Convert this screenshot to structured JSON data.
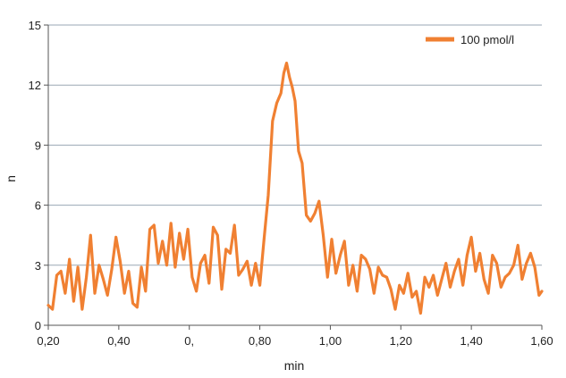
{
  "chart_data": {
    "type": "line",
    "title": "",
    "xlabel": "min",
    "ylabel": "n",
    "xlim": [
      0.2,
      1.6
    ],
    "ylim": [
      0,
      15
    ],
    "grid": true,
    "legend_position": "top-right",
    "x_ticks": [
      {
        "value": 0.2,
        "label": "0,20"
      },
      {
        "value": 0.4,
        "label": "0,40"
      },
      {
        "value": 0.6,
        "label": "0,"
      },
      {
        "value": 0.8,
        "label": "0,80"
      },
      {
        "value": 1.0,
        "label": "1,00"
      },
      {
        "value": 1.2,
        "label": "1,20"
      },
      {
        "value": 1.4,
        "label": "1,40"
      },
      {
        "value": 1.6,
        "label": "1,60"
      }
    ],
    "y_ticks": [
      {
        "value": 0,
        "label": "0"
      },
      {
        "value": 3,
        "label": "3"
      },
      {
        "value": 6,
        "label": "6"
      },
      {
        "value": 9,
        "label": "9"
      },
      {
        "value": 12,
        "label": "12"
      },
      {
        "value": 15,
        "label": "15"
      }
    ],
    "series": [
      {
        "name": "100 pmol/l",
        "color": "#f08032",
        "x": [
          0.2,
          0.212,
          0.224,
          0.236,
          0.248,
          0.26,
          0.272,
          0.284,
          0.296,
          0.308,
          0.32,
          0.332,
          0.344,
          0.356,
          0.368,
          0.38,
          0.392,
          0.404,
          0.416,
          0.428,
          0.44,
          0.452,
          0.464,
          0.476,
          0.488,
          0.5,
          0.512,
          0.524,
          0.536,
          0.548,
          0.56,
          0.572,
          0.584,
          0.596,
          0.608,
          0.62,
          0.632,
          0.644,
          0.656,
          0.668,
          0.68,
          0.692,
          0.704,
          0.716,
          0.728,
          0.74,
          0.752,
          0.764,
          0.776,
          0.788,
          0.8,
          0.812,
          0.824,
          0.836,
          0.848,
          0.86,
          0.868,
          0.876,
          0.884,
          0.892,
          0.9,
          0.91,
          0.92,
          0.932,
          0.944,
          0.956,
          0.968,
          0.98,
          0.992,
          1.004,
          1.016,
          1.028,
          1.04,
          1.052,
          1.064,
          1.076,
          1.088,
          1.1,
          1.112,
          1.124,
          1.136,
          1.148,
          1.16,
          1.172,
          1.184,
          1.196,
          1.208,
          1.22,
          1.232,
          1.244,
          1.256,
          1.268,
          1.28,
          1.292,
          1.304,
          1.316,
          1.328,
          1.34,
          1.352,
          1.364,
          1.376,
          1.388,
          1.4,
          1.412,
          1.424,
          1.436,
          1.448,
          1.46,
          1.472,
          1.484,
          1.496,
          1.508,
          1.52,
          1.532,
          1.544,
          1.556,
          1.568,
          1.58,
          1.592,
          1.6
        ],
        "values": [
          1.0,
          0.8,
          2.5,
          2.7,
          1.6,
          3.3,
          1.2,
          2.9,
          0.8,
          2.4,
          4.5,
          1.6,
          3.0,
          2.3,
          1.5,
          2.8,
          4.4,
          3.2,
          1.6,
          2.7,
          1.1,
          0.9,
          2.9,
          1.7,
          4.8,
          5.0,
          3.1,
          4.2,
          3.0,
          5.1,
          2.9,
          4.6,
          3.3,
          4.8,
          2.4,
          1.7,
          3.1,
          3.5,
          2.1,
          4.9,
          4.5,
          1.8,
          3.8,
          3.6,
          5.0,
          2.5,
          2.8,
          3.2,
          2.0,
          3.1,
          2.0,
          4.3,
          6.5,
          10.2,
          11.1,
          11.6,
          12.6,
          13.1,
          12.4,
          11.9,
          11.2,
          8.7,
          8.1,
          5.5,
          5.2,
          5.6,
          6.2,
          4.5,
          2.4,
          4.3,
          2.6,
          3.5,
          4.2,
          2.0,
          3.0,
          1.7,
          3.5,
          3.3,
          2.8,
          1.6,
          2.9,
          2.5,
          2.4,
          1.8,
          0.8,
          2.0,
          1.6,
          2.6,
          1.4,
          1.7,
          0.6,
          2.4,
          1.9,
          2.5,
          1.5,
          2.3,
          3.1,
          1.9,
          2.7,
          3.3,
          2.0,
          3.5,
          4.4,
          2.7,
          3.6,
          2.3,
          1.6,
          3.5,
          3.1,
          1.9,
          2.4,
          2.6,
          3.0,
          4.0,
          2.3,
          3.1,
          3.6,
          2.9,
          1.5,
          1.7
        ]
      }
    ]
  }
}
